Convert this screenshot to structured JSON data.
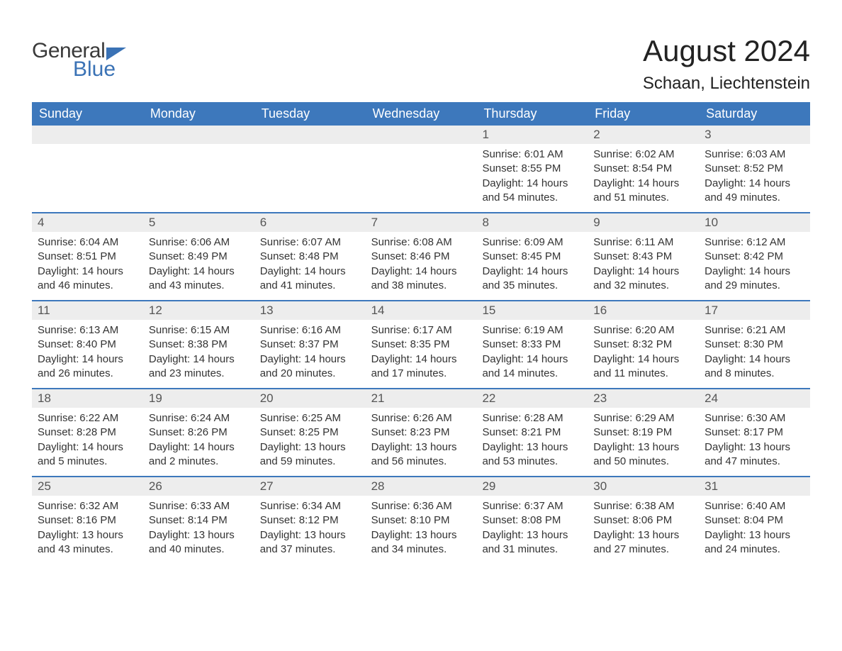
{
  "logo": {
    "text1": "General",
    "text2": "Blue",
    "text1_color": "#3a3a3a",
    "text2_color": "#3a72b5"
  },
  "title": "August 2024",
  "location": "Schaan, Liechtenstein",
  "colors": {
    "header_bg": "#3d78bc",
    "header_text": "#ffffff",
    "daynum_bg": "#ededed",
    "week_border": "#3d78bc",
    "body_text": "#333333",
    "background": "#ffffff"
  },
  "fonts": {
    "title_size": 42,
    "location_size": 24,
    "dayhead_size": 18,
    "daynum_size": 17,
    "data_size": 15
  },
  "day_headers": [
    "Sunday",
    "Monday",
    "Tuesday",
    "Wednesday",
    "Thursday",
    "Friday",
    "Saturday"
  ],
  "weeks": [
    [
      {
        "empty": true
      },
      {
        "empty": true
      },
      {
        "empty": true
      },
      {
        "empty": true
      },
      {
        "day": "1",
        "sunrise": "Sunrise: 6:01 AM",
        "sunset": "Sunset: 8:55 PM",
        "daylight": "Daylight: 14 hours and 54 minutes."
      },
      {
        "day": "2",
        "sunrise": "Sunrise: 6:02 AM",
        "sunset": "Sunset: 8:54 PM",
        "daylight": "Daylight: 14 hours and 51 minutes."
      },
      {
        "day": "3",
        "sunrise": "Sunrise: 6:03 AM",
        "sunset": "Sunset: 8:52 PM",
        "daylight": "Daylight: 14 hours and 49 minutes."
      }
    ],
    [
      {
        "day": "4",
        "sunrise": "Sunrise: 6:04 AM",
        "sunset": "Sunset: 8:51 PM",
        "daylight": "Daylight: 14 hours and 46 minutes."
      },
      {
        "day": "5",
        "sunrise": "Sunrise: 6:06 AM",
        "sunset": "Sunset: 8:49 PM",
        "daylight": "Daylight: 14 hours and 43 minutes."
      },
      {
        "day": "6",
        "sunrise": "Sunrise: 6:07 AM",
        "sunset": "Sunset: 8:48 PM",
        "daylight": "Daylight: 14 hours and 41 minutes."
      },
      {
        "day": "7",
        "sunrise": "Sunrise: 6:08 AM",
        "sunset": "Sunset: 8:46 PM",
        "daylight": "Daylight: 14 hours and 38 minutes."
      },
      {
        "day": "8",
        "sunrise": "Sunrise: 6:09 AM",
        "sunset": "Sunset: 8:45 PM",
        "daylight": "Daylight: 14 hours and 35 minutes."
      },
      {
        "day": "9",
        "sunrise": "Sunrise: 6:11 AM",
        "sunset": "Sunset: 8:43 PM",
        "daylight": "Daylight: 14 hours and 32 minutes."
      },
      {
        "day": "10",
        "sunrise": "Sunrise: 6:12 AM",
        "sunset": "Sunset: 8:42 PM",
        "daylight": "Daylight: 14 hours and 29 minutes."
      }
    ],
    [
      {
        "day": "11",
        "sunrise": "Sunrise: 6:13 AM",
        "sunset": "Sunset: 8:40 PM",
        "daylight": "Daylight: 14 hours and 26 minutes."
      },
      {
        "day": "12",
        "sunrise": "Sunrise: 6:15 AM",
        "sunset": "Sunset: 8:38 PM",
        "daylight": "Daylight: 14 hours and 23 minutes."
      },
      {
        "day": "13",
        "sunrise": "Sunrise: 6:16 AM",
        "sunset": "Sunset: 8:37 PM",
        "daylight": "Daylight: 14 hours and 20 minutes."
      },
      {
        "day": "14",
        "sunrise": "Sunrise: 6:17 AM",
        "sunset": "Sunset: 8:35 PM",
        "daylight": "Daylight: 14 hours and 17 minutes."
      },
      {
        "day": "15",
        "sunrise": "Sunrise: 6:19 AM",
        "sunset": "Sunset: 8:33 PM",
        "daylight": "Daylight: 14 hours and 14 minutes."
      },
      {
        "day": "16",
        "sunrise": "Sunrise: 6:20 AM",
        "sunset": "Sunset: 8:32 PM",
        "daylight": "Daylight: 14 hours and 11 minutes."
      },
      {
        "day": "17",
        "sunrise": "Sunrise: 6:21 AM",
        "sunset": "Sunset: 8:30 PM",
        "daylight": "Daylight: 14 hours and 8 minutes."
      }
    ],
    [
      {
        "day": "18",
        "sunrise": "Sunrise: 6:22 AM",
        "sunset": "Sunset: 8:28 PM",
        "daylight": "Daylight: 14 hours and 5 minutes."
      },
      {
        "day": "19",
        "sunrise": "Sunrise: 6:24 AM",
        "sunset": "Sunset: 8:26 PM",
        "daylight": "Daylight: 14 hours and 2 minutes."
      },
      {
        "day": "20",
        "sunrise": "Sunrise: 6:25 AM",
        "sunset": "Sunset: 8:25 PM",
        "daylight": "Daylight: 13 hours and 59 minutes."
      },
      {
        "day": "21",
        "sunrise": "Sunrise: 6:26 AM",
        "sunset": "Sunset: 8:23 PM",
        "daylight": "Daylight: 13 hours and 56 minutes."
      },
      {
        "day": "22",
        "sunrise": "Sunrise: 6:28 AM",
        "sunset": "Sunset: 8:21 PM",
        "daylight": "Daylight: 13 hours and 53 minutes."
      },
      {
        "day": "23",
        "sunrise": "Sunrise: 6:29 AM",
        "sunset": "Sunset: 8:19 PM",
        "daylight": "Daylight: 13 hours and 50 minutes."
      },
      {
        "day": "24",
        "sunrise": "Sunrise: 6:30 AM",
        "sunset": "Sunset: 8:17 PM",
        "daylight": "Daylight: 13 hours and 47 minutes."
      }
    ],
    [
      {
        "day": "25",
        "sunrise": "Sunrise: 6:32 AM",
        "sunset": "Sunset: 8:16 PM",
        "daylight": "Daylight: 13 hours and 43 minutes."
      },
      {
        "day": "26",
        "sunrise": "Sunrise: 6:33 AM",
        "sunset": "Sunset: 8:14 PM",
        "daylight": "Daylight: 13 hours and 40 minutes."
      },
      {
        "day": "27",
        "sunrise": "Sunrise: 6:34 AM",
        "sunset": "Sunset: 8:12 PM",
        "daylight": "Daylight: 13 hours and 37 minutes."
      },
      {
        "day": "28",
        "sunrise": "Sunrise: 6:36 AM",
        "sunset": "Sunset: 8:10 PM",
        "daylight": "Daylight: 13 hours and 34 minutes."
      },
      {
        "day": "29",
        "sunrise": "Sunrise: 6:37 AM",
        "sunset": "Sunset: 8:08 PM",
        "daylight": "Daylight: 13 hours and 31 minutes."
      },
      {
        "day": "30",
        "sunrise": "Sunrise: 6:38 AM",
        "sunset": "Sunset: 8:06 PM",
        "daylight": "Daylight: 13 hours and 27 minutes."
      },
      {
        "day": "31",
        "sunrise": "Sunrise: 6:40 AM",
        "sunset": "Sunset: 8:04 PM",
        "daylight": "Daylight: 13 hours and 24 minutes."
      }
    ]
  ]
}
